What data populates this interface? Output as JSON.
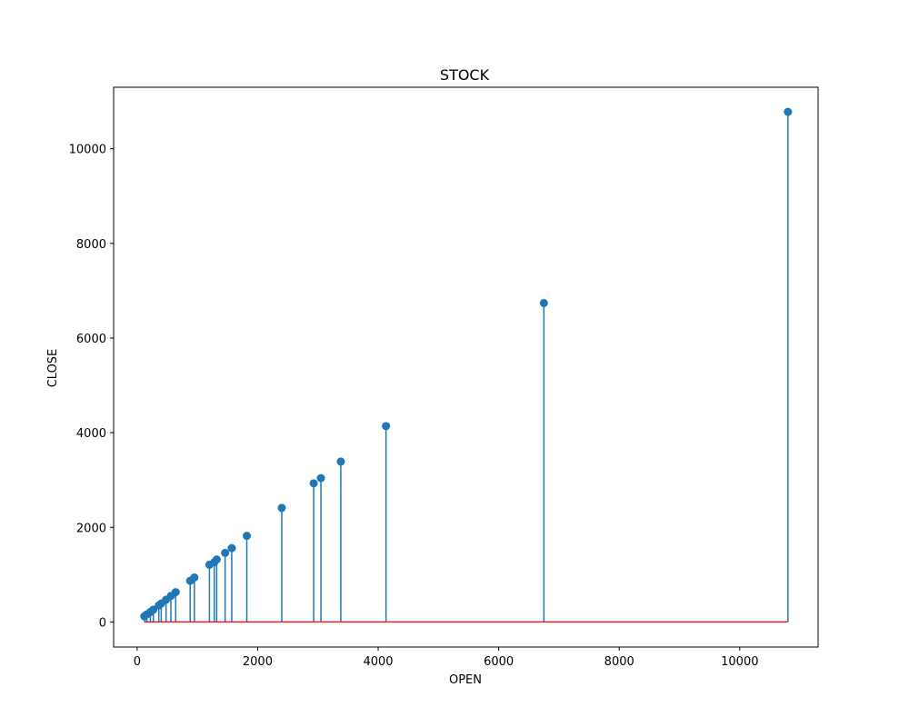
{
  "chart_data": {
    "type": "stem",
    "title": "STOCK",
    "xlabel": "OPEN",
    "ylabel": "CLOSE",
    "xlim": [
      -390,
      11300
    ],
    "ylim": [
      -530,
      11300
    ],
    "xticks": [
      0,
      2000,
      4000,
      6000,
      8000,
      10000
    ],
    "yticks": [
      0,
      2000,
      4000,
      6000,
      8000,
      10000
    ],
    "baseline": 0,
    "grid": false,
    "colors": {
      "stem": "#1f77b4",
      "marker": "#1f77b4",
      "baseline": "#d62728"
    },
    "points": [
      {
        "x": 120,
        "y": 120
      },
      {
        "x": 160,
        "y": 160
      },
      {
        "x": 220,
        "y": 210
      },
      {
        "x": 270,
        "y": 260
      },
      {
        "x": 360,
        "y": 350
      },
      {
        "x": 400,
        "y": 390
      },
      {
        "x": 480,
        "y": 470
      },
      {
        "x": 560,
        "y": 550
      },
      {
        "x": 640,
        "y": 630
      },
      {
        "x": 880,
        "y": 870
      },
      {
        "x": 950,
        "y": 940
      },
      {
        "x": 1200,
        "y": 1210
      },
      {
        "x": 1280,
        "y": 1260
      },
      {
        "x": 1320,
        "y": 1320
      },
      {
        "x": 1460,
        "y": 1460
      },
      {
        "x": 1570,
        "y": 1560
      },
      {
        "x": 1820,
        "y": 1820
      },
      {
        "x": 2400,
        "y": 2410
      },
      {
        "x": 2930,
        "y": 2930
      },
      {
        "x": 3050,
        "y": 3040
      },
      {
        "x": 3380,
        "y": 3390
      },
      {
        "x": 4130,
        "y": 4140
      },
      {
        "x": 6750,
        "y": 6740
      },
      {
        "x": 10800,
        "y": 10780
      }
    ]
  }
}
